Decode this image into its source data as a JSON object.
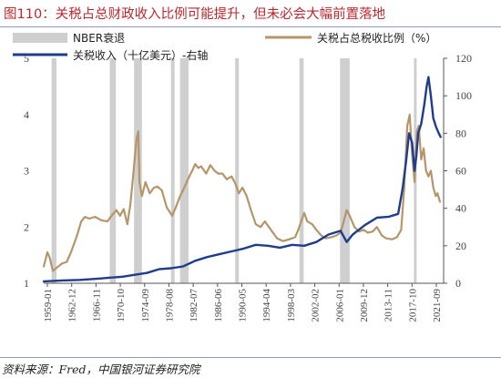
{
  "header": {
    "title": "图110：关税占总财政收入比例可能提升，但未必会大幅前置落地"
  },
  "footer": {
    "source": "资料来源：Fred，中国银河证券研究院"
  },
  "colors": {
    "recession": "#cfcfcf",
    "ratio_line": "#b5956a",
    "revenue_line": "#1f3d8c",
    "axis": "#555555"
  },
  "chart_data": {
    "type": "line",
    "title": "",
    "legend": {
      "placement": "top",
      "items": [
        {
          "name": "NBER衰退",
          "kind": "bar"
        },
        {
          "name": "关税占总税收比例（%）",
          "kind": "line"
        },
        {
          "name": "关税收入（十亿美元）-右轴",
          "kind": "line"
        }
      ]
    },
    "x_range": [
      1959.0,
      2025.0
    ],
    "x_tick_labels": [
      "1959-01",
      "1962-12",
      "1966-11",
      "1970-10",
      "1974-09",
      "1978-08",
      "1982-07",
      "1986-06",
      "1990-05",
      "1994-04",
      "1998-03",
      "2002-02",
      "2006-01",
      "2009-12",
      "2013-11",
      "2017-10",
      "2021-09"
    ],
    "y_left": {
      "min": 1,
      "max": 5,
      "ticks": [
        "1",
        "2",
        "3",
        "4",
        "5"
      ]
    },
    "y_right": {
      "min": 0,
      "max": 120,
      "ticks": [
        "0",
        "20",
        "40",
        "60",
        "80",
        "100",
        "120"
      ]
    },
    "recessions": [
      [
        1960.3,
        1961.1
      ],
      [
        1969.9,
        1970.9
      ],
      [
        1973.9,
        1975.2
      ],
      [
        1980.0,
        1980.6
      ],
      [
        1981.5,
        1982.9
      ],
      [
        1990.6,
        1991.2
      ],
      [
        2001.2,
        2001.9
      ],
      [
        2007.9,
        2009.5
      ],
      [
        2020.1,
        2020.4
      ]
    ],
    "series": [
      {
        "name": "关税占总税收比例（%）",
        "axis": "left",
        "points": [
          [
            1959.0,
            1.3
          ],
          [
            1959.6,
            1.55
          ],
          [
            1960.0,
            1.45
          ],
          [
            1960.5,
            1.22
          ],
          [
            1961.2,
            1.28
          ],
          [
            1962.0,
            1.35
          ],
          [
            1962.8,
            1.38
          ],
          [
            1963.5,
            1.55
          ],
          [
            1964.5,
            1.85
          ],
          [
            1965.2,
            2.1
          ],
          [
            1965.8,
            2.18
          ],
          [
            1966.5,
            2.15
          ],
          [
            1967.5,
            2.18
          ],
          [
            1968.5,
            2.12
          ],
          [
            1969.5,
            2.1
          ],
          [
            1970.2,
            2.2
          ],
          [
            1971.0,
            2.3
          ],
          [
            1971.6,
            2.2
          ],
          [
            1972.2,
            2.32
          ],
          [
            1972.8,
            2.05
          ],
          [
            1973.3,
            2.4
          ],
          [
            1973.8,
            2.95
          ],
          [
            1974.3,
            3.55
          ],
          [
            1974.6,
            3.7
          ],
          [
            1974.8,
            2.8
          ],
          [
            1975.2,
            2.55
          ],
          [
            1975.8,
            2.8
          ],
          [
            1976.5,
            2.6
          ],
          [
            1977.2,
            2.7
          ],
          [
            1977.8,
            2.72
          ],
          [
            1978.5,
            2.65
          ],
          [
            1979.3,
            2.35
          ],
          [
            1980.2,
            2.2
          ],
          [
            1980.8,
            2.35
          ],
          [
            1981.5,
            2.55
          ],
          [
            1982.2,
            2.7
          ],
          [
            1982.8,
            2.85
          ],
          [
            1983.5,
            3.0
          ],
          [
            1984.0,
            3.12
          ],
          [
            1984.5,
            3.05
          ],
          [
            1985.0,
            3.08
          ],
          [
            1985.8,
            2.95
          ],
          [
            1986.5,
            3.1
          ],
          [
            1987.2,
            3.0
          ],
          [
            1987.8,
            2.95
          ],
          [
            1988.5,
            2.95
          ],
          [
            1989.2,
            2.85
          ],
          [
            1990.0,
            2.9
          ],
          [
            1990.6,
            2.78
          ],
          [
            1991.2,
            2.6
          ],
          [
            1991.8,
            2.7
          ],
          [
            1992.5,
            2.55
          ],
          [
            1993.2,
            2.3
          ],
          [
            1994.0,
            2.05
          ],
          [
            1994.8,
            2.0
          ],
          [
            1995.5,
            2.1
          ],
          [
            1996.5,
            1.95
          ],
          [
            1997.5,
            1.8
          ],
          [
            1998.5,
            1.75
          ],
          [
            1999.5,
            1.78
          ],
          [
            2000.5,
            1.82
          ],
          [
            2001.0,
            1.95
          ],
          [
            2001.5,
            2.1
          ],
          [
            2002.0,
            2.25
          ],
          [
            2002.5,
            2.1
          ],
          [
            2003.3,
            2.05
          ],
          [
            2004.0,
            1.95
          ],
          [
            2004.8,
            1.85
          ],
          [
            2005.5,
            1.8
          ],
          [
            2006.5,
            1.82
          ],
          [
            2007.3,
            1.85
          ],
          [
            2008.0,
            1.9
          ],
          [
            2008.5,
            2.1
          ],
          [
            2009.0,
            2.3
          ],
          [
            2009.5,
            2.2
          ],
          [
            2010.3,
            2.0
          ],
          [
            2011.0,
            1.92
          ],
          [
            2011.8,
            1.95
          ],
          [
            2012.5,
            1.9
          ],
          [
            2013.3,
            1.92
          ],
          [
            2014.0,
            2.0
          ],
          [
            2014.8,
            1.85
          ],
          [
            2015.5,
            1.8
          ],
          [
            2016.5,
            1.78
          ],
          [
            2017.3,
            1.82
          ],
          [
            2018.0,
            1.95
          ],
          [
            2018.5,
            2.7
          ],
          [
            2019.0,
            3.8
          ],
          [
            2019.4,
            4.0
          ],
          [
            2019.8,
            3.3
          ],
          [
            2020.2,
            2.8
          ],
          [
            2020.6,
            3.7
          ],
          [
            2020.9,
            3.8
          ],
          [
            2021.3,
            3.2
          ],
          [
            2021.7,
            3.4
          ],
          [
            2022.1,
            3.0
          ],
          [
            2022.5,
            2.9
          ],
          [
            2022.9,
            3.0
          ],
          [
            2023.3,
            2.7
          ],
          [
            2023.7,
            2.55
          ],
          [
            2024.0,
            2.6
          ],
          [
            2024.4,
            2.45
          ]
        ]
      },
      {
        "name": "关税收入（十亿美元）-右轴",
        "axis": "right",
        "points": [
          [
            1959.0,
            1.0
          ],
          [
            1962.0,
            1.5
          ],
          [
            1965.0,
            1.8
          ],
          [
            1968.0,
            2.5
          ],
          [
            1970.0,
            3.0
          ],
          [
            1972.0,
            3.5
          ],
          [
            1974.0,
            4.5
          ],
          [
            1976.0,
            5.5
          ],
          [
            1978.0,
            7.5
          ],
          [
            1980.0,
            8.0
          ],
          [
            1982.0,
            9.0
          ],
          [
            1984.0,
            12.0
          ],
          [
            1986.0,
            14.0
          ],
          [
            1988.0,
            15.5
          ],
          [
            1990.0,
            17.0
          ],
          [
            1992.0,
            18.5
          ],
          [
            1994.0,
            20.5
          ],
          [
            1996.0,
            20.0
          ],
          [
            1998.0,
            19.0
          ],
          [
            2000.0,
            20.5
          ],
          [
            2002.0,
            20.0
          ],
          [
            2004.0,
            22.0
          ],
          [
            2006.0,
            26.0
          ],
          [
            2008.0,
            28.0
          ],
          [
            2009.0,
            22.0
          ],
          [
            2010.0,
            26.0
          ],
          [
            2012.0,
            31.0
          ],
          [
            2014.0,
            35.0
          ],
          [
            2016.0,
            35.5
          ],
          [
            2017.5,
            37.0
          ],
          [
            2018.2,
            50.0
          ],
          [
            2018.8,
            65.0
          ],
          [
            2019.3,
            80.0
          ],
          [
            2019.8,
            75.0
          ],
          [
            2020.2,
            60.0
          ],
          [
            2020.5,
            68.0
          ],
          [
            2020.8,
            80.0
          ],
          [
            2021.3,
            85.0
          ],
          [
            2021.8,
            95.0
          ],
          [
            2022.2,
            105.0
          ],
          [
            2022.5,
            110.0
          ],
          [
            2022.9,
            100.0
          ],
          [
            2023.3,
            88.0
          ],
          [
            2023.8,
            83.0
          ],
          [
            2024.2,
            80.0
          ],
          [
            2024.5,
            78.0
          ]
        ]
      }
    ]
  }
}
